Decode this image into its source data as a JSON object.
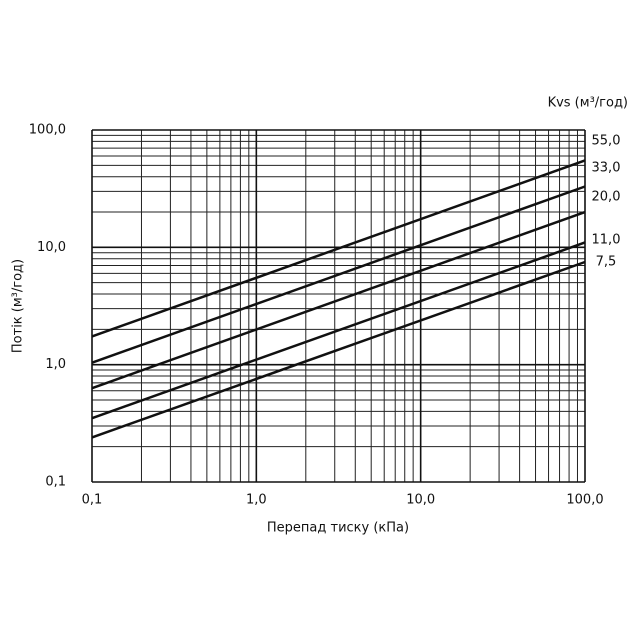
{
  "chart_data": {
    "type": "line",
    "x_label": "Перепад тиску (кПа)",
    "y_label": "Потік (м³/год)",
    "legend_title": "Kvs (м³/год)",
    "x": [
      0.1,
      100
    ],
    "series": [
      {
        "name": "55,0",
        "color": "#111111",
        "values": [
          1.74,
          55
        ]
      },
      {
        "name": "33,0",
        "color": "#111111",
        "values": [
          1.04,
          33
        ]
      },
      {
        "name": "20,0",
        "color": "#111111",
        "values": [
          0.63,
          20
        ]
      },
      {
        "name": "11,0",
        "color": "#111111",
        "values": [
          0.35,
          11
        ]
      },
      {
        "name": "7,5",
        "color": "#111111",
        "values": [
          0.24,
          7.5
        ]
      }
    ],
    "xlim": [
      0.1,
      100
    ],
    "ylim": [
      0.1,
      100
    ],
    "xticks": [
      {
        "value": 0.1,
        "label": "0,1"
      },
      {
        "value": 1,
        "label": "1,0"
      },
      {
        "value": 10,
        "label": "10,0"
      },
      {
        "value": 100,
        "label": "100,0"
      }
    ],
    "yticks": [
      {
        "value": 0.1,
        "label": "0,1"
      },
      {
        "value": 1,
        "label": "1,0"
      },
      {
        "value": 10,
        "label": "10,0"
      },
      {
        "value": 100,
        "label": "100,0"
      }
    ],
    "log_x": true,
    "log_y": true,
    "grid": true,
    "minor_grid": true,
    "legend": "right"
  }
}
